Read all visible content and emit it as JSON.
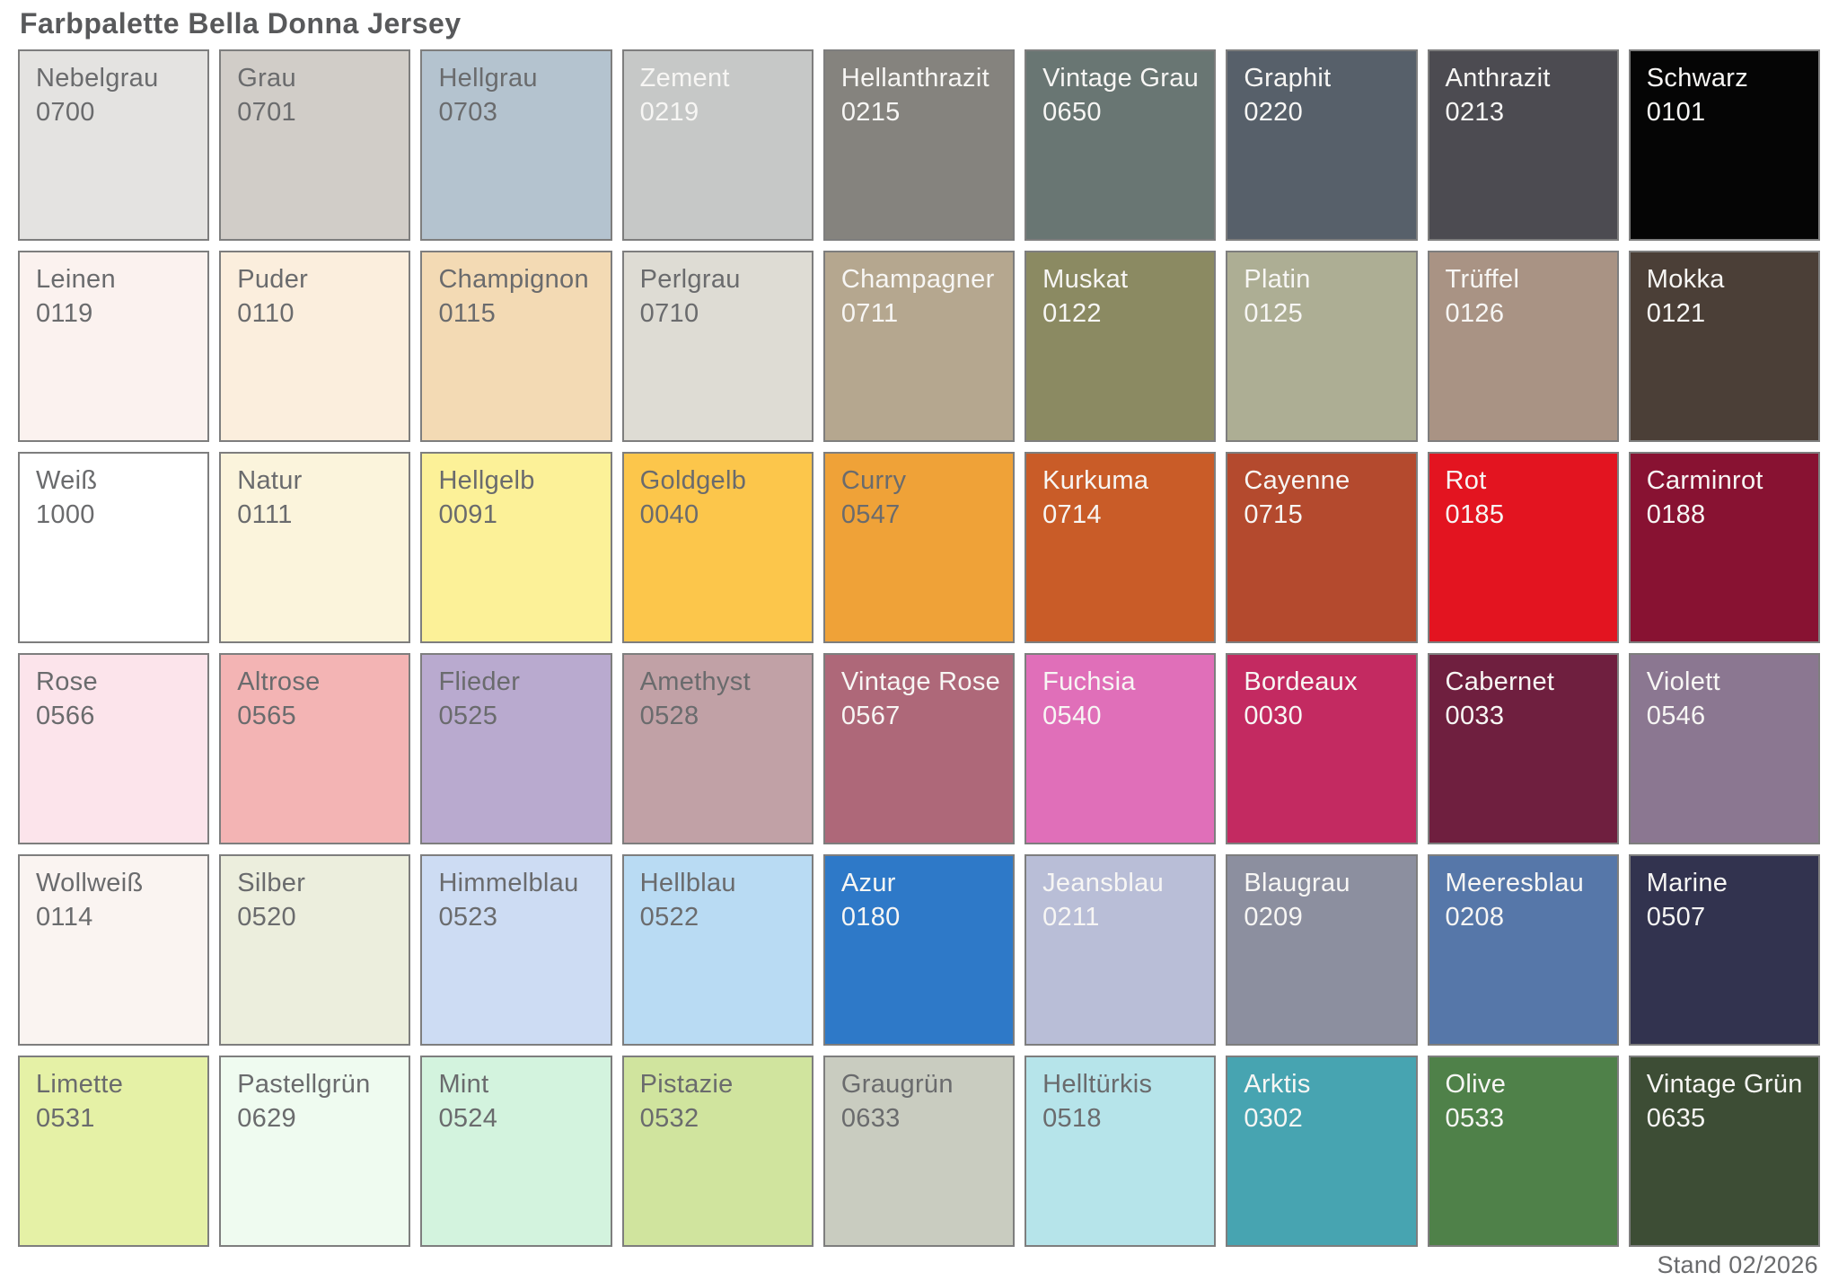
{
  "title": "Farbpalette Bella Donna Jersey",
  "footer": "Stand 02/2026",
  "palette": {
    "columns": 9,
    "rows": 6,
    "border_color": "#7e7e7e",
    "title_color": "#58595b",
    "dark_text_color": "#6a6b6d",
    "light_text_color": "#f7f6f4",
    "swatches": [
      {
        "name": "Nebelgrau",
        "code": "0700",
        "color": "#e4e3e1",
        "text": "dark"
      },
      {
        "name": "Grau",
        "code": "0701",
        "color": "#d1cdc8",
        "text": "dark"
      },
      {
        "name": "Hellgrau",
        "code": "0703",
        "color": "#b4c3cf",
        "text": "dark"
      },
      {
        "name": "Zement",
        "code": "0219",
        "color": "#c6c8c7",
        "text": "light"
      },
      {
        "name": "Hellanthrazit",
        "code": "0215",
        "color": "#85837e",
        "text": "light"
      },
      {
        "name": "Vintage Grau",
        "code": "0650",
        "color": "#697673",
        "text": "light"
      },
      {
        "name": "Graphit",
        "code": "0220",
        "color": "#57606a",
        "text": "light"
      },
      {
        "name": "Anthrazit",
        "code": "0213",
        "color": "#4c4b51",
        "text": "light"
      },
      {
        "name": "Schwarz",
        "code": "0101",
        "color": "#050505",
        "text": "light"
      },
      {
        "name": "Leinen",
        "code": "0119",
        "color": "#fbf2ef",
        "text": "dark"
      },
      {
        "name": "Puder",
        "code": "0110",
        "color": "#fbeedd",
        "text": "dark"
      },
      {
        "name": "Champignon",
        "code": "0115",
        "color": "#f3dab4",
        "text": "dark"
      },
      {
        "name": "Perlgrau",
        "code": "0710",
        "color": "#dedcd4",
        "text": "dark"
      },
      {
        "name": "Champagner",
        "code": "0711",
        "color": "#b5a78f",
        "text": "light"
      },
      {
        "name": "Muskat",
        "code": "0122",
        "color": "#8b8a62",
        "text": "light"
      },
      {
        "name": "Platin",
        "code": "0125",
        "color": "#adae94",
        "text": "light"
      },
      {
        "name": "Trüffel",
        "code": "0126",
        "color": "#a99384",
        "text": "light"
      },
      {
        "name": "Mokka",
        "code": "0121",
        "color": "#4b3f37",
        "text": "light"
      },
      {
        "name": "Weiß",
        "code": "1000",
        "color": "#ffffff",
        "text": "dark"
      },
      {
        "name": "Natur",
        "code": "0111",
        "color": "#fbf4dc",
        "text": "dark"
      },
      {
        "name": "Hellgelb",
        "code": "0091",
        "color": "#fcf198",
        "text": "dark"
      },
      {
        "name": "Goldgelb",
        "code": "0040",
        "color": "#fcc64b",
        "text": "dark"
      },
      {
        "name": "Curry",
        "code": "0547",
        "color": "#efa238",
        "text": "dark"
      },
      {
        "name": "Kurkuma",
        "code": "0714",
        "color": "#c95c28",
        "text": "light"
      },
      {
        "name": "Cayenne",
        "code": "0715",
        "color": "#b44a2e",
        "text": "light"
      },
      {
        "name": "Rot",
        "code": "0185",
        "color": "#e31420",
        "text": "light"
      },
      {
        "name": "Carminrot",
        "code": "0188",
        "color": "#881232",
        "text": "light"
      },
      {
        "name": "Rose",
        "code": "0566",
        "color": "#fce4eb",
        "text": "dark"
      },
      {
        "name": "Altrose",
        "code": "0565",
        "color": "#f3b4b4",
        "text": "dark"
      },
      {
        "name": "Flieder",
        "code": "0525",
        "color": "#b9aacf",
        "text": "dark"
      },
      {
        "name": "Amethyst",
        "code": "0528",
        "color": "#c1a1a6",
        "text": "dark"
      },
      {
        "name": "Vintage Rose",
        "code": "0567",
        "color": "#ae6879",
        "text": "light"
      },
      {
        "name": "Fuchsia",
        "code": "0540",
        "color": "#e06fb9",
        "text": "light"
      },
      {
        "name": "Bordeaux",
        "code": "0030",
        "color": "#c32a61",
        "text": "light"
      },
      {
        "name": "Cabernet",
        "code": "0033",
        "color": "#6f1f3f",
        "text": "light"
      },
      {
        "name": "Violett",
        "code": "0546",
        "color": "#8b7791",
        "text": "light"
      },
      {
        "name": "Wollweiß",
        "code": "0114",
        "color": "#faf4f1",
        "text": "dark"
      },
      {
        "name": "Silber",
        "code": "0520",
        "color": "#eceedd",
        "text": "dark"
      },
      {
        "name": "Himmelblau",
        "code": "0523",
        "color": "#cddcf3",
        "text": "dark"
      },
      {
        "name": "Hellblau",
        "code": "0522",
        "color": "#b9dbf3",
        "text": "dark"
      },
      {
        "name": "Azur",
        "code": "0180",
        "color": "#2e79c8",
        "text": "light"
      },
      {
        "name": "Jeansblau",
        "code": "0211",
        "color": "#b9bed7",
        "text": "light"
      },
      {
        "name": "Blaugrau",
        "code": "0209",
        "color": "#8c8f9f",
        "text": "light"
      },
      {
        "name": "Meeresblau",
        "code": "0208",
        "color": "#5677a9",
        "text": "light"
      },
      {
        "name": "Marine",
        "code": "0507",
        "color": "#32334f",
        "text": "light"
      },
      {
        "name": "Limette",
        "code": "0531",
        "color": "#e5f1a6",
        "text": "dark"
      },
      {
        "name": "Pastellgrün",
        "code": "0629",
        "color": "#effbf0",
        "text": "dark"
      },
      {
        "name": "Mint",
        "code": "0524",
        "color": "#d3f3de",
        "text": "dark"
      },
      {
        "name": "Pistazie",
        "code": "0532",
        "color": "#d0e49e",
        "text": "dark"
      },
      {
        "name": "Graugrün",
        "code": "0633",
        "color": "#c9ccc0",
        "text": "dark"
      },
      {
        "name": "Helltürkis",
        "code": "0518",
        "color": "#b6e4ea",
        "text": "dark"
      },
      {
        "name": "Arktis",
        "code": "0302",
        "color": "#47a4b1",
        "text": "light"
      },
      {
        "name": "Olive",
        "code": "0533",
        "color": "#4f8149",
        "text": "light"
      },
      {
        "name": "Vintage Grün",
        "code": "0635",
        "color": "#3d4d35",
        "text": "light"
      }
    ]
  }
}
